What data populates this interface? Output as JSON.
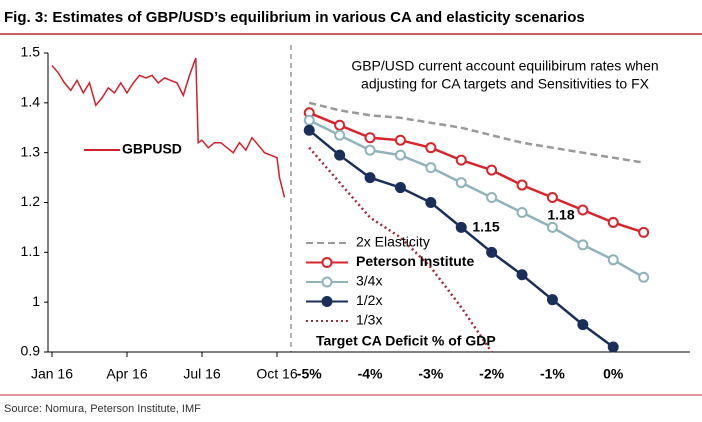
{
  "title": "Fig. 3: Estimates of GBP/USD’s equilibrium in various CA and elasticity scenarios",
  "source": "Source: Nomura, Peterson Institute, IMF",
  "chart_data": [
    {
      "type": "line",
      "x": [
        0,
        0.25,
        0.5,
        0.75,
        1,
        1.25,
        1.5,
        1.75,
        2,
        2.25,
        2.5,
        2.75,
        3,
        3.25,
        3.5,
        3.75,
        4,
        4.25,
        4.5,
        4.75,
        5,
        5.25,
        5.5,
        5.75,
        5.85,
        6,
        6.25,
        6.5,
        6.75,
        7,
        7.25,
        7.5,
        7.75,
        8,
        8.25,
        8.5,
        8.75,
        9,
        9.1,
        9.2,
        9.3
      ],
      "series": [
        {
          "name": "GBPUSD",
          "color": "#d0202a",
          "values": [
            1.475,
            1.46,
            1.44,
            1.425,
            1.445,
            1.42,
            1.44,
            1.395,
            1.41,
            1.43,
            1.42,
            1.44,
            1.42,
            1.44,
            1.455,
            1.45,
            1.455,
            1.44,
            1.45,
            1.445,
            1.44,
            1.415,
            1.455,
            1.49,
            1.32,
            1.325,
            1.31,
            1.32,
            1.32,
            1.31,
            1.3,
            1.32,
            1.305,
            1.33,
            1.315,
            1.3,
            1.295,
            1.29,
            1.25,
            1.23,
            1.21
          ]
        }
      ],
      "xlim": [
        0,
        9.4
      ],
      "xticks": [
        {
          "value": 0,
          "label": "Jan 16"
        },
        {
          "value": 3,
          "label": "Apr 16"
        },
        {
          "value": 6,
          "label": "Jul 16"
        },
        {
          "value": 9,
          "label": "Oct 16"
        }
      ],
      "ylim": [
        0.9,
        1.5
      ],
      "yticks": [
        0.9,
        1,
        1.1,
        1.2,
        1.3,
        1.4,
        1.5
      ],
      "grid": false
    },
    {
      "type": "line",
      "subtitle": [
        "GBP/USD current account equilibirum rates when",
        "adjusting for CA targets and Sensitivities to FX"
      ],
      "xlabel": "Target CA Deficit % of GDP",
      "x": [
        -5,
        -4.5,
        -4,
        -3.5,
        -3,
        -2.5,
        -2,
        -1.5,
        -1,
        -0.5,
        0,
        0.5
      ],
      "series": [
        {
          "name": "2x Elasticity",
          "color": "#999999",
          "style": "dashed",
          "marker": false,
          "values": [
            1.4,
            1.385,
            1.375,
            1.37,
            1.36,
            1.35,
            1.335,
            1.32,
            1.31,
            1.3,
            1.29,
            1.28
          ]
        },
        {
          "name": "Peterson Institute",
          "color": "#d7262b",
          "style": "solid",
          "marker": true,
          "marker_fill": "#ffffff",
          "values": [
            1.38,
            1.355,
            1.33,
            1.325,
            1.31,
            1.285,
            1.265,
            1.235,
            1.21,
            1.185,
            1.16,
            1.14
          ]
        },
        {
          "name": "3/4x",
          "color": "#8fb3b8",
          "style": "solid",
          "marker": true,
          "marker_fill": "#ffffff",
          "values": [
            1.365,
            1.335,
            1.305,
            1.295,
            1.27,
            1.24,
            1.21,
            1.18,
            1.15,
            1.115,
            1.085,
            1.05
          ]
        },
        {
          "name": "1/2x",
          "color": "#1a2e5a",
          "style": "solid",
          "marker": true,
          "marker_fill": "#1a2e5a",
          "values": [
            1.345,
            1.295,
            1.25,
            1.23,
            1.2,
            1.15,
            1.1,
            1.055,
            1.005,
            0.955,
            0.91,
            null
          ]
        },
        {
          "name": "1/3x",
          "color": "#9b2d3a",
          "style": "dotted",
          "marker": false,
          "values": [
            1.31,
            1.24,
            1.17,
            1.13,
            1.07,
            0.99,
            0.9,
            null,
            null,
            null,
            null,
            null
          ]
        }
      ],
      "annotations": [
        "1.15",
        "1.18"
      ],
      "xlim": [
        -5.3,
        0.95
      ],
      "xticks": [
        {
          "value": -5,
          "label": "-5%"
        },
        {
          "value": -4,
          "label": "-4%"
        },
        {
          "value": -3,
          "label": "-3%"
        },
        {
          "value": -2,
          "label": "-2%"
        },
        {
          "value": -1,
          "label": "-1%"
        },
        {
          "value": 0,
          "label": "0%"
        }
      ],
      "ylim": [
        0.9,
        1.5
      ],
      "grid": false
    }
  ]
}
